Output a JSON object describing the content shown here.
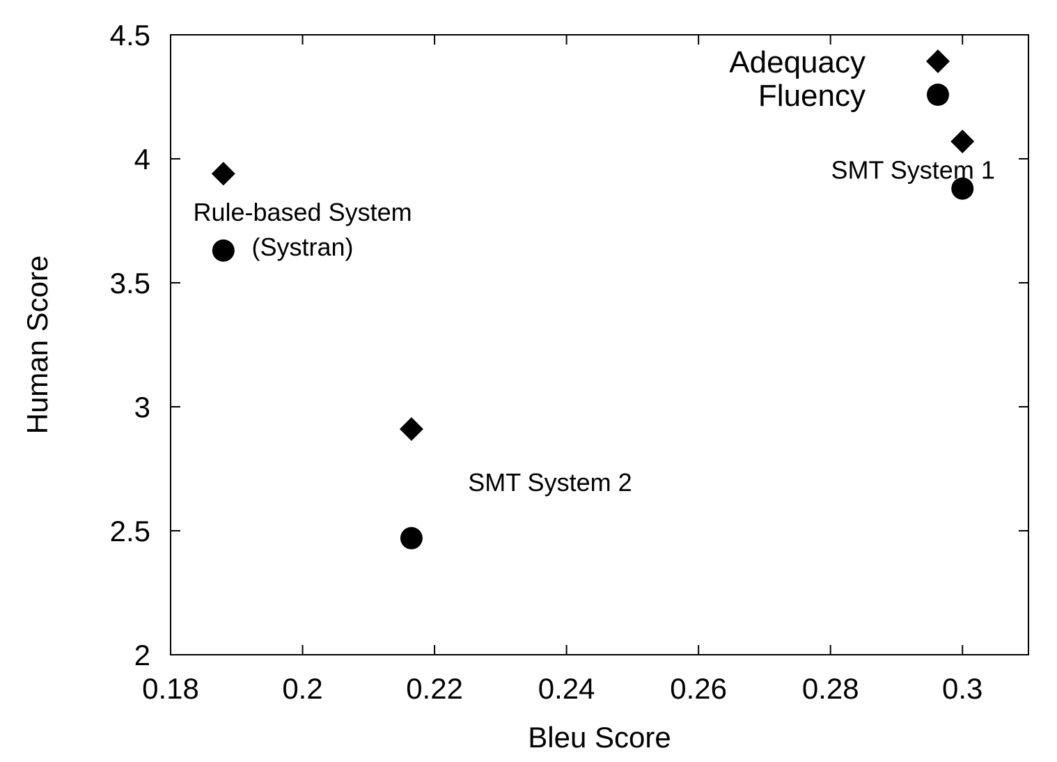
{
  "chart_data": {
    "type": "scatter",
    "xlabel": "Bleu Score",
    "ylabel": "Human Score",
    "xlim": [
      0.18,
      0.31
    ],
    "ylim": [
      2,
      4.5
    ],
    "xticks": [
      0.18,
      0.2,
      0.22,
      0.24,
      0.26,
      0.28,
      0.3
    ],
    "xtick_labels": [
      "0.18",
      "0.2",
      "0.22",
      "0.24",
      "0.26",
      "0.28",
      "0.3"
    ],
    "yticks": [
      2,
      2.5,
      3,
      3.5,
      4,
      4.5
    ],
    "ytick_labels": [
      "2",
      "2.5",
      "3",
      "3.5",
      "4",
      "4.5"
    ],
    "grid": false,
    "legend_position": "top-right",
    "series": [
      {
        "name": "Adequacy",
        "marker": "diamond",
        "points": [
          {
            "x": 0.188,
            "y": 3.94
          },
          {
            "x": 0.2165,
            "y": 2.91
          },
          {
            "x": 0.3,
            "y": 4.07
          }
        ]
      },
      {
        "name": "Fluency",
        "marker": "circle",
        "points": [
          {
            "x": 0.188,
            "y": 3.63
          },
          {
            "x": 0.2165,
            "y": 2.47
          },
          {
            "x": 0.3,
            "y": 3.88
          }
        ]
      }
    ],
    "annotations": [
      {
        "lines": [
          "Rule-based System",
          "(Systran)"
        ],
        "x": 0.2,
        "y": 3.75
      },
      {
        "lines": [
          "SMT System 2"
        ],
        "x": 0.2375,
        "y": 2.66
      },
      {
        "lines": [
          "SMT System 1"
        ],
        "x": 0.2925,
        "y": 3.92
      }
    ]
  }
}
